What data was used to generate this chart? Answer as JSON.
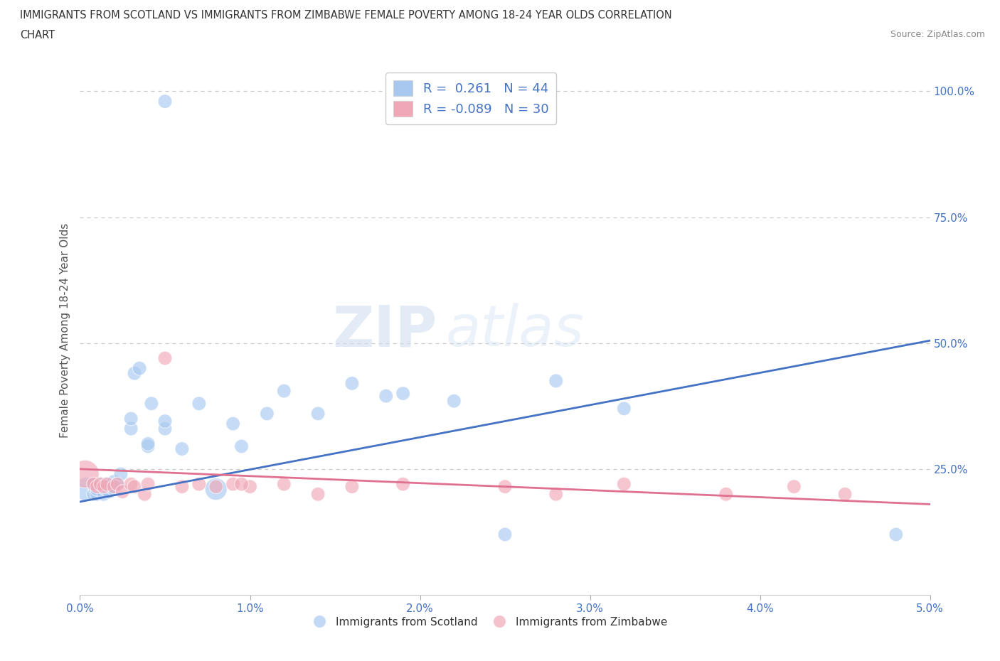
{
  "title_line1": "IMMIGRANTS FROM SCOTLAND VS IMMIGRANTS FROM ZIMBABWE FEMALE POVERTY AMONG 18-24 YEAR OLDS CORRELATION",
  "title_line2": "CHART",
  "source": "Source: ZipAtlas.com",
  "ylabel": "Female Poverty Among 18-24 Year Olds",
  "xlim": [
    0,
    0.05
  ],
  "ylim": [
    0,
    1.05
  ],
  "xticks": [
    0,
    0.01,
    0.02,
    0.03,
    0.04,
    0.05
  ],
  "xtick_labels": [
    "0.0%",
    "1.0%",
    "2.0%",
    "3.0%",
    "4.0%",
    "5.0%"
  ],
  "ytick_labels_right": [
    "100.0%",
    "75.0%",
    "50.0%",
    "25.0%"
  ],
  "yticks_right": [
    1.0,
    0.75,
    0.5,
    0.25
  ],
  "legend_label1": "R =  0.261   N = 44",
  "legend_label2": "R = -0.089   N = 30",
  "scotland_color": "#a8c8f0",
  "zimbabwe_color": "#f0a8b8",
  "scotland_line_color": "#4472c4",
  "zimbabwe_line_color": "#e07090",
  "watermark_zip": "ZIP",
  "watermark_atlas": "atlas",
  "background_color": "#ffffff",
  "grid_color": "#c8c8c8",
  "scotland_x": [
    0.0004,
    0.0008,
    0.0008,
    0.0009,
    0.001,
    0.001,
    0.0012,
    0.0013,
    0.0014,
    0.0015,
    0.0015,
    0.0016,
    0.0017,
    0.0018,
    0.002,
    0.002,
    0.0022,
    0.0024,
    0.003,
    0.003,
    0.0032,
    0.0035,
    0.004,
    0.004,
    0.0042,
    0.005,
    0.005,
    0.006,
    0.007,
    0.008,
    0.009,
    0.0095,
    0.011,
    0.012,
    0.014,
    0.016,
    0.018,
    0.019,
    0.022,
    0.025,
    0.028,
    0.032,
    0.048,
    0.005
  ],
  "scotland_y": [
    0.21,
    0.2,
    0.22,
    0.21,
    0.2,
    0.21,
    0.22,
    0.215,
    0.2,
    0.21,
    0.22,
    0.215,
    0.205,
    0.215,
    0.21,
    0.225,
    0.22,
    0.24,
    0.33,
    0.35,
    0.44,
    0.45,
    0.295,
    0.3,
    0.38,
    0.33,
    0.345,
    0.29,
    0.38,
    0.21,
    0.34,
    0.295,
    0.36,
    0.405,
    0.36,
    0.42,
    0.395,
    0.4,
    0.385,
    0.12,
    0.425,
    0.37,
    0.12,
    0.98
  ],
  "scotland_sizes": [
    600,
    200,
    200,
    200,
    200,
    200,
    200,
    200,
    200,
    200,
    200,
    200,
    200,
    200,
    200,
    200,
    200,
    200,
    200,
    200,
    200,
    200,
    200,
    200,
    200,
    200,
    200,
    200,
    200,
    500,
    200,
    200,
    200,
    200,
    200,
    200,
    200,
    200,
    200,
    200,
    200,
    200,
    200,
    200
  ],
  "zimbabwe_x": [
    0.0003,
    0.0008,
    0.001,
    0.0012,
    0.0014,
    0.0016,
    0.002,
    0.0022,
    0.0025,
    0.003,
    0.0032,
    0.0038,
    0.004,
    0.005,
    0.006,
    0.007,
    0.008,
    0.009,
    0.01,
    0.012,
    0.014,
    0.016,
    0.019,
    0.025,
    0.028,
    0.032,
    0.038,
    0.042,
    0.045,
    0.0095
  ],
  "zimbabwe_y": [
    0.24,
    0.22,
    0.215,
    0.22,
    0.215,
    0.22,
    0.215,
    0.22,
    0.205,
    0.22,
    0.215,
    0.2,
    0.22,
    0.47,
    0.215,
    0.22,
    0.215,
    0.22,
    0.215,
    0.22,
    0.2,
    0.215,
    0.22,
    0.215,
    0.2,
    0.22,
    0.2,
    0.215,
    0.2,
    0.22
  ],
  "zimbabwe_sizes": [
    800,
    200,
    200,
    200,
    200,
    200,
    200,
    200,
    200,
    200,
    200,
    200,
    200,
    200,
    200,
    200,
    200,
    200,
    200,
    200,
    200,
    200,
    200,
    200,
    200,
    200,
    200,
    200,
    200,
    200
  ],
  "scotland_trend_x": [
    0.0,
    0.05
  ],
  "scotland_trend_y": [
    0.185,
    0.505
  ],
  "zimbabwe_trend_x": [
    0.0,
    0.05
  ],
  "zimbabwe_trend_y": [
    0.25,
    0.18
  ]
}
